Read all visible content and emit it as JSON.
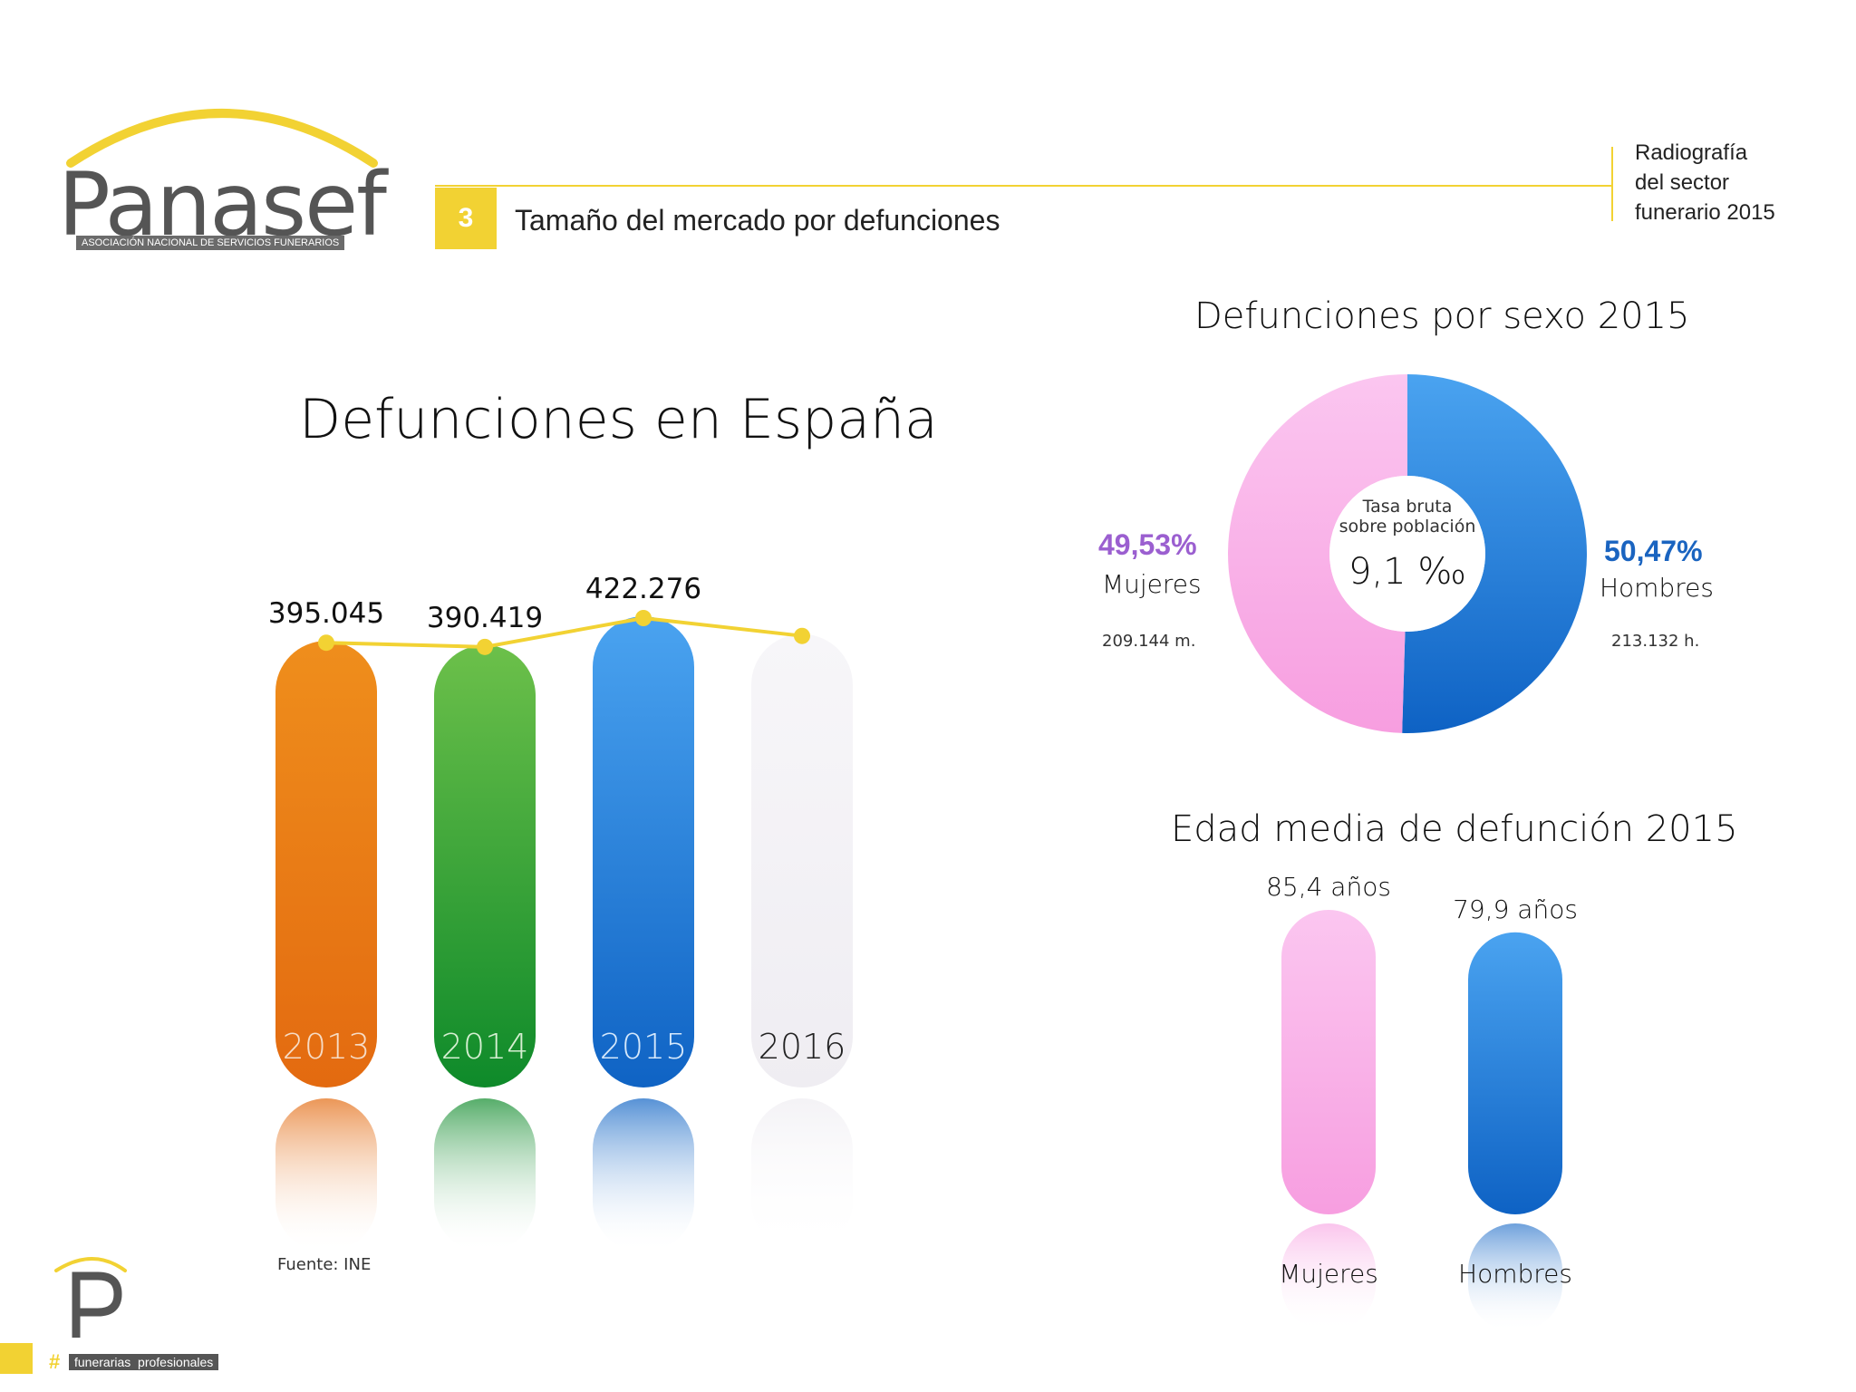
{
  "header": {
    "logo_text": "Panasef",
    "logo_subtitle": "ASOCIACIÓN NACIONAL DE SERVICIOS FUNERARIOS",
    "section_number": "3",
    "section_title": "Tamaño del mercado por defunciones",
    "report_title_line1": "Radiografía",
    "report_title_line2": "del sector",
    "report_title_line3": "funerario 2015"
  },
  "footer": {
    "source": "Fuente: INE",
    "brand_tag_symbol": "#",
    "brand_tag": "funerarias  profesionales"
  },
  "colors": {
    "accent_yellow": "#f2d233",
    "orange": "#e8741a",
    "green": "#2f9a2e",
    "blue": "#1e73d2",
    "light_gray": "#f2f0f4",
    "pink": "#f9a8e4",
    "purple_text": "#9b5fd0",
    "blue_text": "#1a64c0"
  },
  "chart_data": [
    {
      "type": "bar",
      "title": "Defunciones en España",
      "categories": [
        "2013",
        "2014",
        "2015",
        "2016"
      ],
      "values": [
        395045,
        390419,
        422276,
        null
      ],
      "value_labels": [
        "395.045",
        "390.419",
        "422.276",
        ""
      ],
      "trend_line": true
    },
    {
      "type": "pie",
      "title": "Defunciones por sexo 2015",
      "donut": true,
      "slices": [
        {
          "name": "Mujeres",
          "percent": 49.53,
          "percent_label": "49,53%",
          "count_label": "209.144 m."
        },
        {
          "name": "Hombres",
          "percent": 50.47,
          "percent_label": "50,47%",
          "count_label": "213.132 h."
        }
      ],
      "center_text_line1": "Tasa bruta",
      "center_text_line2": "sobre población",
      "center_value": "9,1 ‰"
    },
    {
      "type": "bar",
      "title": "Edad media de defunción 2015",
      "categories": [
        "Mujeres",
        "Hombres"
      ],
      "values": [
        85.4,
        79.9
      ],
      "value_labels": [
        "85,4 años",
        "79,9 años"
      ]
    }
  ]
}
